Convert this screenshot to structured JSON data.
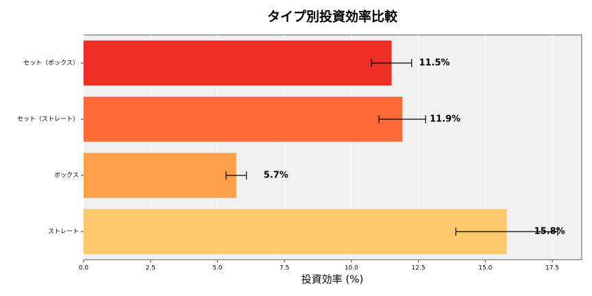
{
  "chart_data": {
    "type": "barh",
    "title": "タイプ別投資効率比較",
    "xlabel": "投資効率 (%)",
    "categories": [
      "セット（ボックス）",
      "セット（ストレート）",
      "ボックス",
      "ストレート"
    ],
    "values": [
      11.5,
      11.9,
      5.7,
      15.8
    ],
    "value_labels": [
      "11.5%",
      "11.9%",
      "5.7%",
      "15.8%"
    ],
    "errors": [
      0.75,
      0.87,
      0.38,
      1.9
    ],
    "colors": [
      "#ee2e22",
      "#fd6a35",
      "#fea04a",
      "#fec96a"
    ],
    "xlim": [
      0,
      18.6
    ],
    "xticks": [
      {
        "value": 0,
        "label": "0.0"
      },
      2.5,
      {
        "value": 5,
        "label": "5.0"
      },
      7.5,
      {
        "value": 10,
        "label": "10.0"
      },
      12.5,
      {
        "value": 15,
        "label": "15.0"
      },
      17.5
    ],
    "grid": true
  }
}
